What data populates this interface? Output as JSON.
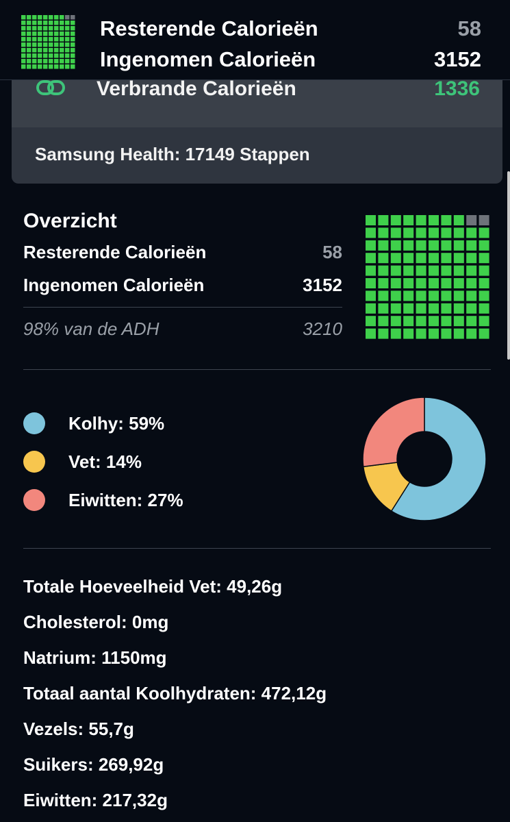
{
  "header": {
    "remaining_label": "Resterende Calorieën",
    "remaining_value": "58",
    "consumed_label": "Ingenomen Calorieën",
    "consumed_value": "3152"
  },
  "burned": {
    "icon": "link-icon",
    "label": "Verbrande Calorieën",
    "value": "1336"
  },
  "steps": {
    "text": "Samsung Health: 17149 Stappen"
  },
  "overview": {
    "title": "Overzicht",
    "remaining_label": "Resterende Calorieën",
    "remaining_value": "58",
    "consumed_label": "Ingenomen Calorieën",
    "consumed_value": "3152",
    "adh_label": "98% van de ADH",
    "adh_value": "3210",
    "grid_fraction": 0.98
  },
  "macros": [
    {
      "label": "Kolhy: 59%",
      "percent": 59,
      "color": "#7ec4dc"
    },
    {
      "label": "Vet: 14%",
      "percent": 14,
      "color": "#f7c64e"
    },
    {
      "label": "Eiwitten: 27%",
      "percent": 27,
      "color": "#f2877d"
    }
  ],
  "nutrients": [
    "Totale Hoeveelheid Vet: 49,26g",
    "Cholesterol: 0mg",
    "Natrium: 1150mg",
    "Totaal aantal Koolhydraten: 472,12g",
    "Vezels: 55,7g",
    "Suikers: 269,92g",
    "Eiwitten: 217,32g"
  ],
  "colors": {
    "background": "#060b14",
    "grid_filled": "#3fd04b",
    "grid_empty": "#6e737a",
    "burned_accent": "#3ec47a"
  }
}
